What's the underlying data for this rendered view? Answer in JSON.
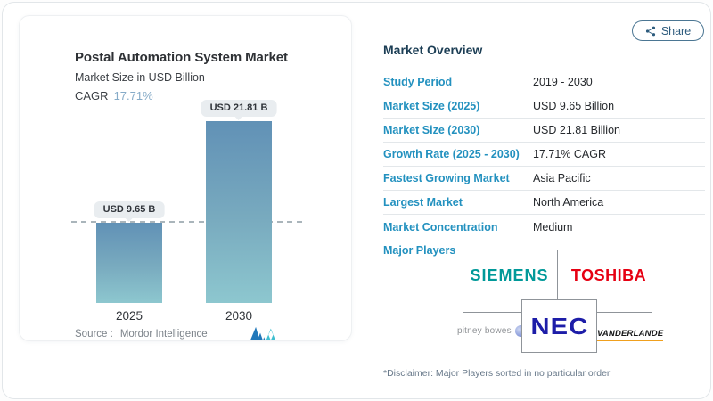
{
  "header": {
    "share_label": "Share"
  },
  "chart_card": {
    "title": "Postal Automation System Market",
    "subtitle": "Market Size in USD Billion",
    "cagr_label": "CAGR",
    "cagr_value": "17.71%",
    "source_label": "Source :",
    "source_name": "Mordor Intelligence"
  },
  "chart_data": {
    "type": "bar",
    "title": "Postal Automation System Market",
    "ylabel": "Market Size in USD Billion",
    "categories": [
      "2025",
      "2030"
    ],
    "values": [
      9.65,
      21.81
    ],
    "bar_labels": [
      "USD 9.65 B",
      "USD 21.81 B"
    ],
    "ylim": [
      0,
      21.81
    ],
    "reference_line_y": 9.65,
    "grid": "off",
    "legend": "none",
    "bar_color_top": "#6191b6",
    "bar_color_bottom": "#8dc7cf"
  },
  "overview": {
    "heading": "Market Overview",
    "rows": [
      {
        "label": "Study Period",
        "value": "2019 - 2030"
      },
      {
        "label": "Market Size (2025)",
        "value": "USD 9.65 Billion"
      },
      {
        "label": "Market Size (2030)",
        "value": "USD 21.81 Billion"
      },
      {
        "label": "Growth Rate (2025 - 2030)",
        "value": "17.71% CAGR"
      },
      {
        "label": "Fastest Growing Market",
        "value": "Asia Pacific"
      },
      {
        "label": "Largest Market",
        "value": "North America"
      },
      {
        "label": "Market Concentration",
        "value": "Medium"
      }
    ],
    "major_players": {
      "label": "Major Players",
      "companies": [
        "SIEMENS",
        "TOSHIBA",
        "pitney bowes",
        "NEC",
        "VANDERLANDE"
      ]
    },
    "disclaimer": "*Disclaimer: Major Players sorted in no particular order"
  },
  "colors": {
    "row_label_blue": "#2391bf",
    "heading_navy": "#1c3e55",
    "cagr_light_blue": "#86abc8",
    "bar_gradient_top": "#6191b6",
    "bar_gradient_bottom": "#8dc7cf",
    "pill_background": "#e9edf0",
    "siemens_teal": "#009999",
    "toshiba_red": "#e60012",
    "nec_blue": "#1d1da8",
    "vanderlande_underline_orange": "#f0a01e",
    "share_button_blue": "#2d5b7d"
  }
}
